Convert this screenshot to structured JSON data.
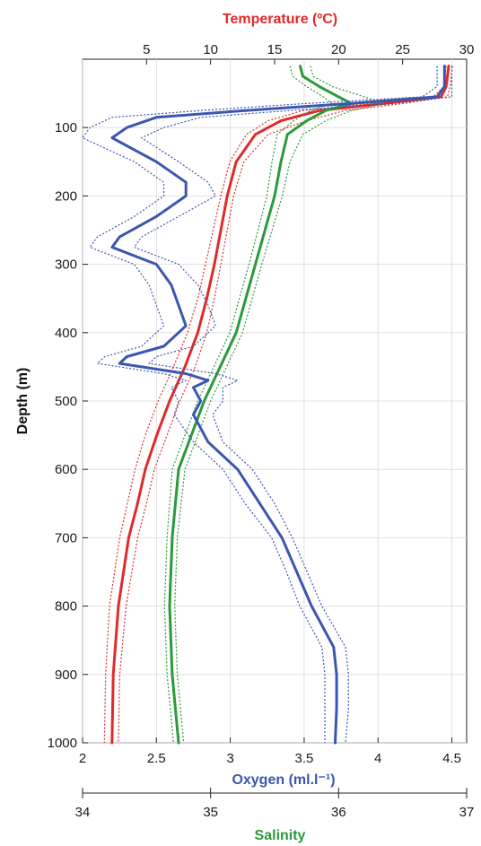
{
  "chart_data": {
    "type": "line",
    "ylabel": "Depth (m)",
    "ylim": [
      0,
      1000
    ],
    "y_ticks": [
      100,
      200,
      300,
      400,
      500,
      600,
      700,
      800,
      900,
      1000
    ],
    "y_inverted": true,
    "grid": true,
    "axes": {
      "temperature": {
        "label": "Temperature (ºC)",
        "position": "top",
        "color": "#e02a2a",
        "range": [
          0,
          30
        ],
        "ticks": [
          5,
          10,
          15,
          20,
          25,
          30
        ]
      },
      "oxygen": {
        "label": "Oxygen (ml.l⁻¹)",
        "position": "bottom",
        "color": "#3a56b0",
        "range": [
          2,
          4.6
        ],
        "ticks": [
          "2",
          "2.5",
          "3",
          "3.5",
          "4",
          "4.5"
        ]
      },
      "salinity": {
        "label": "Salinity",
        "position": "bottom-secondary",
        "color": "#2a9a3a",
        "range": [
          34,
          37
        ],
        "ticks": [
          34,
          35,
          36,
          37
        ]
      }
    },
    "series": [
      {
        "name": "Temperature",
        "axis": "temperature",
        "color": "#e02a2a",
        "depth": [
          10,
          40,
          55,
          65,
          75,
          90,
          110,
          150,
          200,
          250,
          300,
          350,
          400,
          450,
          500,
          550,
          600,
          650,
          700,
          800,
          900,
          1000
        ],
        "mean": [
          28.6,
          28.4,
          28.0,
          23.5,
          18.5,
          15.5,
          13.5,
          12.0,
          11.3,
          10.8,
          10.3,
          9.7,
          9.0,
          8.0,
          6.8,
          5.8,
          4.9,
          4.3,
          3.6,
          2.8,
          2.4,
          2.3
        ],
        "lower": [
          28.4,
          28.2,
          27.4,
          22.2,
          17.2,
          14.5,
          12.8,
          11.5,
          10.8,
          10.2,
          9.6,
          9.0,
          8.2,
          7.1,
          5.9,
          4.9,
          4.1,
          3.5,
          2.9,
          2.1,
          1.8,
          1.7
        ],
        "upper": [
          28.9,
          28.7,
          28.5,
          25.0,
          20.5,
          17.5,
          14.5,
          12.6,
          11.8,
          11.3,
          10.8,
          10.3,
          9.7,
          8.8,
          7.6,
          6.6,
          5.6,
          5.0,
          4.3,
          3.4,
          2.9,
          2.8
        ]
      },
      {
        "name": "Salinity",
        "axis": "salinity",
        "color": "#2a9a3a",
        "depth": [
          10,
          25,
          40,
          55,
          65,
          75,
          90,
          110,
          150,
          200,
          300,
          400,
          500,
          600,
          700,
          800,
          900,
          1000
        ],
        "mean": [
          35.7,
          35.72,
          35.85,
          36.0,
          36.1,
          35.9,
          35.75,
          35.6,
          35.55,
          35.5,
          35.35,
          35.2,
          34.95,
          34.75,
          34.7,
          34.68,
          34.7,
          34.75
        ],
        "lower": [
          35.62,
          35.64,
          35.75,
          35.88,
          35.95,
          35.78,
          35.65,
          35.52,
          35.48,
          35.44,
          35.3,
          35.15,
          34.9,
          34.7,
          34.66,
          34.64,
          34.66,
          34.71
        ],
        "upper": [
          35.78,
          35.8,
          35.95,
          36.2,
          36.35,
          36.1,
          35.9,
          35.72,
          35.62,
          35.56,
          35.4,
          35.25,
          35.0,
          34.8,
          34.74,
          34.72,
          34.74,
          34.79
        ]
      },
      {
        "name": "Oxygen",
        "axis": "oxygen",
        "color": "#3a56b0",
        "depth": [
          10,
          40,
          55,
          65,
          75,
          85,
          100,
          115,
          150,
          180,
          200,
          230,
          260,
          275,
          300,
          330,
          360,
          390,
          420,
          435,
          445,
          460,
          470,
          480,
          500,
          520,
          560,
          600,
          650,
          700,
          750,
          800,
          860,
          900,
          950,
          1000
        ],
        "mean": [
          4.45,
          4.45,
          4.4,
          3.8,
          3.1,
          2.5,
          2.3,
          2.2,
          2.5,
          2.7,
          2.7,
          2.5,
          2.25,
          2.2,
          2.5,
          2.6,
          2.65,
          2.7,
          2.55,
          2.3,
          2.25,
          2.7,
          2.85,
          2.75,
          2.8,
          2.75,
          2.85,
          3.05,
          3.2,
          3.35,
          3.45,
          3.55,
          3.7,
          3.72,
          3.72,
          3.71
        ],
        "lower": [
          4.4,
          4.4,
          4.3,
          3.5,
          2.8,
          2.2,
          2.05,
          2.0,
          2.35,
          2.55,
          2.55,
          2.35,
          2.1,
          2.05,
          2.35,
          2.45,
          2.5,
          2.55,
          2.4,
          2.15,
          2.1,
          2.55,
          2.7,
          2.6,
          2.65,
          2.62,
          2.75,
          2.95,
          3.1,
          3.28,
          3.38,
          3.47,
          3.62,
          3.64,
          3.64,
          3.64
        ],
        "upper": [
          4.5,
          4.5,
          4.5,
          4.1,
          3.4,
          2.8,
          2.55,
          2.4,
          2.65,
          2.85,
          2.9,
          2.65,
          2.4,
          2.35,
          2.65,
          2.78,
          2.85,
          2.9,
          2.75,
          2.5,
          2.45,
          2.9,
          3.05,
          2.95,
          2.95,
          2.88,
          2.95,
          3.15,
          3.3,
          3.42,
          3.52,
          3.62,
          3.78,
          3.8,
          3.8,
          3.78
        ]
      }
    ]
  }
}
